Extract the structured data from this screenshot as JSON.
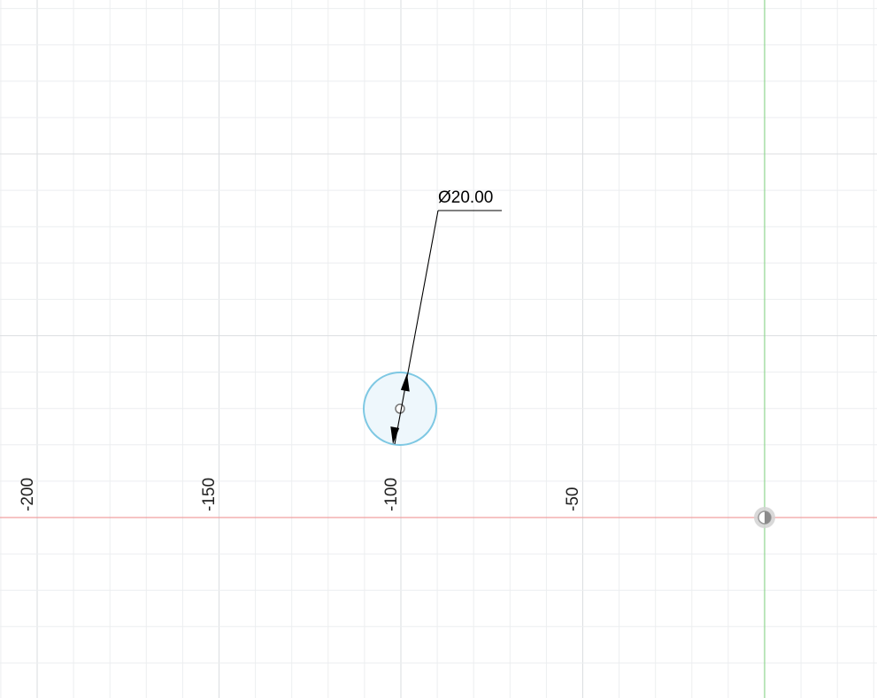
{
  "sketch": {
    "axis_labels": {
      "m200": "-200",
      "m150": "-150",
      "m100": "-100",
      "m50": "-50"
    },
    "dimension": {
      "label": "Ø20.00"
    },
    "colors": {
      "background": "#ffffff",
      "minor_grid": "#eceef0",
      "major_grid": "#dcdfe2",
      "x_axis": "#f0a0a0",
      "y_axis": "#8fd68f",
      "circle_stroke": "#7ec8e3",
      "circle_fill": "#eef7fc",
      "dimension_line": "#000000"
    }
  }
}
